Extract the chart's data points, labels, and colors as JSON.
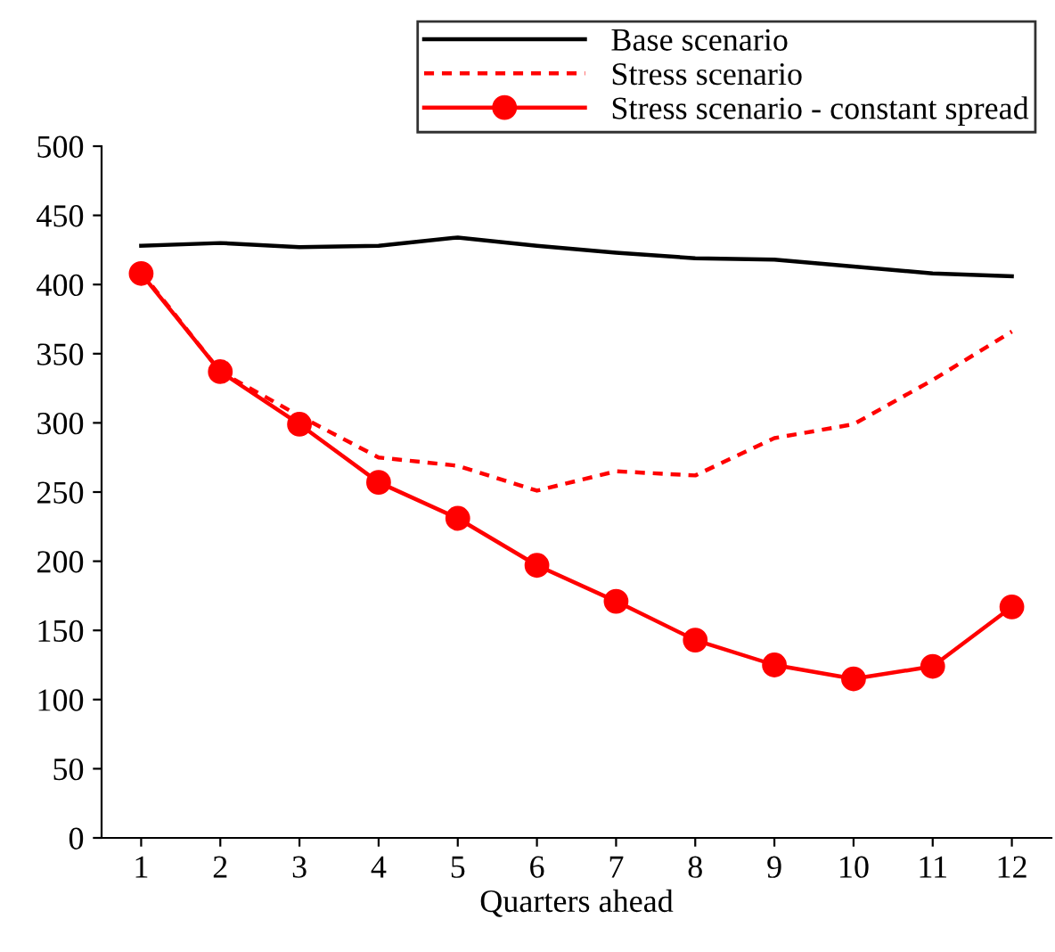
{
  "chart_data": {
    "type": "line",
    "xlabel": "Quarters ahead",
    "categories": [
      "1",
      "2",
      "3",
      "4",
      "5",
      "6",
      "7",
      "8",
      "9",
      "10",
      "11",
      "12"
    ],
    "ylim": [
      0,
      500
    ],
    "yticks": [
      0,
      50,
      100,
      150,
      200,
      250,
      300,
      350,
      400,
      450,
      500
    ],
    "grid": false,
    "legend": "top right",
    "series": [
      {
        "name": "Base scenario",
        "color": "#000000",
        "line_style": "solid",
        "marker": "none",
        "values": [
          428,
          430,
          427,
          428,
          434,
          428,
          423,
          419,
          418,
          413,
          408,
          406
        ]
      },
      {
        "name": "Stress scenario",
        "color": "#ff0000",
        "line_style": "dashed",
        "marker": "none",
        "values": [
          409,
          337,
          305,
          275,
          269,
          251,
          265,
          262,
          289,
          299,
          331,
          366
        ]
      },
      {
        "name": "Stress scenario - constant spread",
        "color": "#ff0000",
        "line_style": "solid",
        "marker": "circle",
        "values": [
          408,
          337,
          299,
          257,
          231,
          197,
          171,
          143,
          125,
          115,
          124,
          167
        ]
      }
    ]
  }
}
